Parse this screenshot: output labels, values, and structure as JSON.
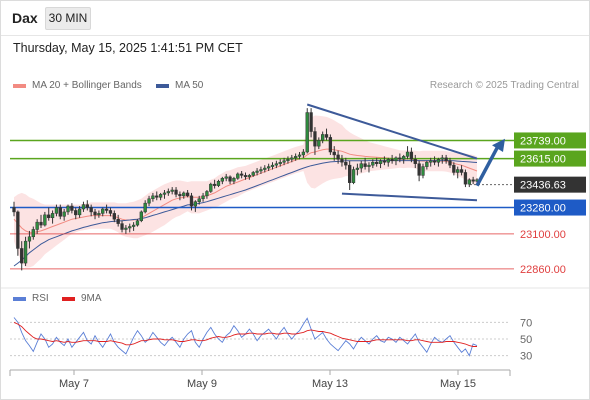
{
  "header": {
    "symbol": "Dax",
    "timeframe": "30 MIN",
    "datetime": "Thursday, May 15, 2025 1:41:51 PM CET"
  },
  "legend": {
    "bb_label": "MA 20 + Bollinger Bands",
    "bb_color": "#f28b82",
    "ma50_label": "MA 50",
    "ma50_color": "#3d5a99",
    "credit": "Research © 2025 Trading Central",
    "rsi_label": "RSI",
    "rsi_color": "#5b7fd6",
    "rsi_ma_label": "9MA",
    "rsi_ma_color": "#e02020"
  },
  "chart_data": {
    "type": "candlestick",
    "price_range": [
      22750,
      24050
    ],
    "current_price": 23436.63,
    "levels": [
      {
        "value": 23739.0,
        "label": "23739.00",
        "kind": "resistance",
        "color": "#5aa51e"
      },
      {
        "value": 23615.0,
        "label": "23615.00",
        "kind": "resistance",
        "color": "#5aa51e"
      },
      {
        "value": 23436.63,
        "label": "23436.63",
        "kind": "last",
        "color": "#333333"
      },
      {
        "value": 23280.0,
        "label": "23280.00",
        "kind": "pivot",
        "color": "#1e5bc6"
      },
      {
        "value": 23100.0,
        "label": "23100.00",
        "kind": "support",
        "color": "#e04040"
      },
      {
        "value": 22860.0,
        "label": "22860.00",
        "kind": "support",
        "color": "#e04040"
      }
    ],
    "x_ticks": [
      {
        "label": "May 7",
        "index": 19
      },
      {
        "label": "May 9",
        "index": 62
      },
      {
        "label": "May 13",
        "index": 105
      },
      {
        "label": "May 15",
        "index": 148
      }
    ],
    "candles": [
      [
        23280,
        23320,
        23220,
        23250
      ],
      [
        23250,
        23260,
        22950,
        23000
      ],
      [
        23000,
        23050,
        22850,
        22900
      ],
      [
        22900,
        23080,
        22880,
        23050
      ],
      [
        23050,
        23120,
        23000,
        23080
      ],
      [
        23080,
        23150,
        23060,
        23130
      ],
      [
        23130,
        23200,
        23100,
        23180
      ],
      [
        23180,
        23230,
        23140,
        23160
      ],
      [
        23160,
        23250,
        23150,
        23230
      ],
      [
        23230,
        23280,
        23190,
        23210
      ],
      [
        23210,
        23260,
        23170,
        23240
      ],
      [
        23240,
        23300,
        23220,
        23280
      ],
      [
        23280,
        23300,
        23200,
        23220
      ],
      [
        23220,
        23270,
        23190,
        23250
      ],
      [
        23250,
        23300,
        23230,
        23290
      ],
      [
        23290,
        23310,
        23240,
        23260
      ],
      [
        23260,
        23280,
        23200,
        23230
      ],
      [
        23230,
        23290,
        23210,
        23270
      ],
      [
        23270,
        23320,
        23250,
        23300
      ],
      [
        23300,
        23330,
        23260,
        23280
      ],
      [
        23280,
        23300,
        23220,
        23250
      ],
      [
        23250,
        23270,
        23200,
        23230
      ],
      [
        23230,
        23260,
        23210,
        23240
      ],
      [
        23240,
        23280,
        23220,
        23270
      ],
      [
        23270,
        23300,
        23240,
        23260
      ],
      [
        23260,
        23280,
        23220,
        23240
      ],
      [
        23240,
        23260,
        23180,
        23200
      ],
      [
        23200,
        23230,
        23150,
        23170
      ],
      [
        23170,
        23190,
        23110,
        23130
      ],
      [
        23130,
        23160,
        23100,
        23140
      ],
      [
        23140,
        23170,
        23110,
        23150
      ],
      [
        23150,
        23180,
        23120,
        23160
      ],
      [
        23160,
        23200,
        23150,
        23190
      ],
      [
        23190,
        23260,
        23180,
        23250
      ],
      [
        23250,
        23330,
        23240,
        23310
      ],
      [
        23310,
        23360,
        23290,
        23340
      ],
      [
        23340,
        23380,
        23320,
        23360
      ],
      [
        23360,
        23390,
        23330,
        23350
      ],
      [
        23350,
        23380,
        23330,
        23370
      ],
      [
        23370,
        23400,
        23340,
        23380
      ],
      [
        23380,
        23410,
        23360,
        23390
      ],
      [
        23390,
        23420,
        23370,
        23400
      ],
      [
        23400,
        23420,
        23350,
        23370
      ],
      [
        23370,
        23390,
        23330,
        23360
      ],
      [
        23360,
        23390,
        23340,
        23380
      ],
      [
        23380,
        23400,
        23350,
        23360
      ],
      [
        23360,
        23380,
        23260,
        23290
      ],
      [
        23290,
        23330,
        23250,
        23320
      ],
      [
        23320,
        23360,
        23300,
        23340
      ],
      [
        23340,
        23380,
        23320,
        23360
      ],
      [
        23360,
        23400,
        23340,
        23390
      ],
      [
        23390,
        23450,
        23380,
        23440
      ],
      [
        23440,
        23470,
        23410,
        23430
      ],
      [
        23430,
        23470,
        23420,
        23460
      ],
      [
        23460,
        23490,
        23440,
        23480
      ],
      [
        23480,
        23510,
        23460,
        23490
      ],
      [
        23490,
        23500,
        23440,
        23460
      ],
      [
        23460,
        23490,
        23440,
        23480
      ],
      [
        23480,
        23520,
        23470,
        23510
      ],
      [
        23510,
        23530,
        23480,
        23500
      ],
      [
        23500,
        23520,
        23470,
        23490
      ],
      [
        23490,
        23510,
        23470,
        23500
      ],
      [
        23500,
        23530,
        23490,
        23520
      ],
      [
        23520,
        23550,
        23500,
        23530
      ],
      [
        23530,
        23560,
        23510,
        23540
      ],
      [
        23540,
        23570,
        23520,
        23550
      ],
      [
        23550,
        23580,
        23530,
        23560
      ],
      [
        23560,
        23590,
        23540,
        23570
      ],
      [
        23570,
        23600,
        23550,
        23580
      ],
      [
        23580,
        23610,
        23560,
        23590
      ],
      [
        23590,
        23620,
        23570,
        23600
      ],
      [
        23600,
        23630,
        23580,
        23610
      ],
      [
        23610,
        23640,
        23590,
        23620
      ],
      [
        23620,
        23650,
        23600,
        23630
      ],
      [
        23630,
        23660,
        23610,
        23640
      ],
      [
        23640,
        23680,
        23620,
        23660
      ],
      [
        23660,
        23960,
        23650,
        23930
      ],
      [
        23930,
        23960,
        23760,
        23800
      ],
      [
        23800,
        23830,
        23640,
        23700
      ],
      [
        23700,
        23760,
        23680,
        23740
      ],
      [
        23740,
        23800,
        23720,
        23780
      ],
      [
        23780,
        23820,
        23740,
        23760
      ],
      [
        23760,
        23780,
        23640,
        23660
      ],
      [
        23660,
        23700,
        23600,
        23640
      ],
      [
        23640,
        23670,
        23580,
        23610
      ],
      [
        23610,
        23640,
        23560,
        23590
      ],
      [
        23590,
        23620,
        23540,
        23570
      ],
      [
        23570,
        23600,
        23400,
        23450
      ],
      [
        23450,
        23560,
        23440,
        23540
      ],
      [
        23540,
        23580,
        23500,
        23550
      ],
      [
        23550,
        23600,
        23520,
        23580
      ],
      [
        23580,
        23620,
        23540,
        23560
      ],
      [
        23560,
        23590,
        23520,
        23570
      ],
      [
        23570,
        23610,
        23550,
        23590
      ],
      [
        23590,
        23620,
        23560,
        23580
      ],
      [
        23580,
        23610,
        23550,
        23600
      ],
      [
        23600,
        23630,
        23570,
        23590
      ],
      [
        23590,
        23620,
        23560,
        23610
      ],
      [
        23610,
        23640,
        23580,
        23600
      ],
      [
        23600,
        23630,
        23570,
        23620
      ],
      [
        23620,
        23650,
        23590,
        23610
      ],
      [
        23610,
        23640,
        23580,
        23630
      ],
      [
        23630,
        23700,
        23610,
        23660
      ],
      [
        23660,
        23690,
        23590,
        23610
      ],
      [
        23610,
        23640,
        23550,
        23580
      ],
      [
        23580,
        23600,
        23460,
        23500
      ],
      [
        23500,
        23580,
        23480,
        23560
      ],
      [
        23560,
        23600,
        23540,
        23590
      ],
      [
        23590,
        23620,
        23560,
        23600
      ],
      [
        23600,
        23630,
        23570,
        23590
      ],
      [
        23590,
        23620,
        23560,
        23610
      ],
      [
        23610,
        23640,
        23580,
        23620
      ],
      [
        23620,
        23640,
        23580,
        23600
      ],
      [
        23600,
        23620,
        23550,
        23570
      ],
      [
        23570,
        23590,
        23500,
        23520
      ],
      [
        23520,
        23560,
        23480,
        23540
      ],
      [
        23540,
        23570,
        23500,
        23520
      ],
      [
        23520,
        23540,
        23420,
        23440
      ],
      [
        23440,
        23480,
        23420,
        23470
      ],
      [
        23470,
        23490,
        23440,
        23460
      ],
      [
        23460,
        23480,
        23440,
        23470
      ]
    ],
    "bb_mid": [
      23200,
      23170,
      23140,
      23120,
      23110,
      23110,
      23115,
      23120,
      23130,
      23140,
      23150,
      23160,
      23170,
      23180,
      23190,
      23200,
      23205,
      23210,
      23215,
      23220,
      23225,
      23225,
      23225,
      23225,
      23225,
      23225,
      23220,
      23210,
      23200,
      23195,
      23195,
      23195,
      23200,
      23210,
      23225,
      23240,
      23255,
      23270,
      23285,
      23300,
      23315,
      23330,
      23340,
      23345,
      23350,
      23355,
      23350,
      23350,
      23350,
      23355,
      23360,
      23370,
      23380,
      23395,
      23410,
      23425,
      23435,
      23445,
      23455,
      23465,
      23475,
      23485,
      23495,
      23505,
      23515,
      23525,
      23535,
      23545,
      23555,
      23565,
      23575,
      23585,
      23595,
      23605,
      23612,
      23620,
      23640,
      23655,
      23660,
      23668,
      23675,
      23680,
      23680,
      23676,
      23670,
      23665,
      23655,
      23645,
      23640,
      23636,
      23633,
      23630,
      23628,
      23626,
      23624,
      23622,
      23620,
      23618,
      23616,
      23614,
      23612,
      23610,
      23612,
      23612,
      23608,
      23600,
      23598,
      23598,
      23598,
      23598,
      23598,
      23598,
      23596,
      23590,
      23582,
      23576,
      23570,
      23560,
      23550,
      23540,
      23530
    ],
    "bb_width": [
      150,
      200,
      240,
      250,
      240,
      230,
      210,
      190,
      170,
      160,
      150,
      140,
      130,
      120,
      110,
      100,
      95,
      90,
      90,
      90,
      90,
      90,
      90,
      90,
      90,
      90,
      95,
      100,
      110,
      115,
      120,
      125,
      130,
      130,
      135,
      140,
      140,
      140,
      140,
      140,
      135,
      130,
      125,
      120,
      110,
      100,
      110,
      110,
      110,
      105,
      100,
      100,
      100,
      105,
      105,
      105,
      100,
      100,
      100,
      95,
      90,
      90,
      90,
      90,
      90,
      90,
      90,
      90,
      90,
      90,
      90,
      90,
      90,
      90,
      90,
      90,
      190,
      240,
      250,
      240,
      230,
      220,
      210,
      200,
      190,
      180,
      160,
      150,
      140,
      130,
      120,
      110,
      100,
      95,
      90,
      85,
      80,
      75,
      70,
      65,
      60,
      60,
      60,
      60,
      60,
      65,
      70,
      70,
      70,
      70,
      70,
      70,
      70,
      70,
      75,
      80,
      85,
      90,
      95,
      100,
      100
    ],
    "ma50": [
      22880,
      22900,
      22920,
      22945,
      22970,
      22990,
      23010,
      23030,
      23045,
      23060,
      23070,
      23080,
      23090,
      23100,
      23110,
      23120,
      23128,
      23136,
      23144,
      23150,
      23158,
      23164,
      23170,
      23176,
      23180,
      23184,
      23186,
      23188,
      23190,
      23192,
      23195,
      23198,
      23200,
      23205,
      23210,
      23218,
      23226,
      23234,
      23242,
      23250,
      23258,
      23266,
      23274,
      23282,
      23290,
      23298,
      23300,
      23304,
      23308,
      23314,
      23320,
      23328,
      23336,
      23344,
      23352,
      23360,
      23368,
      23376,
      23384,
      23392,
      23400,
      23410,
      23420,
      23430,
      23440,
      23450,
      23460,
      23470,
      23480,
      23490,
      23500,
      23510,
      23520,
      23530,
      23540,
      23550,
      23558,
      23566,
      23572,
      23578,
      23584,
      23588,
      23592,
      23594,
      23596,
      23598,
      23600,
      23600,
      23600,
      23600,
      23600,
      23600,
      23601,
      23601,
      23601,
      23601,
      23601,
      23601,
      23601,
      23601,
      23601,
      23601,
      23601,
      23601,
      23601,
      23601,
      23601,
      23601,
      23601,
      23601,
      23601,
      23601,
      23601,
      23601,
      23600,
      23598,
      23596,
      23594,
      23592,
      23590,
      23588
    ],
    "rsi_range": [
      15,
      85
    ],
    "rsi_ticks": [
      70,
      50,
      30
    ],
    "rsi": [
      76,
      70,
      58,
      48,
      42,
      35,
      46,
      56,
      50,
      40,
      44,
      52,
      46,
      42,
      50,
      40,
      46,
      52,
      58,
      48,
      44,
      54,
      46,
      40,
      48,
      56,
      46,
      40,
      36,
      32,
      42,
      52,
      60,
      54,
      46,
      50,
      58,
      52,
      46,
      42,
      48,
      52,
      46,
      40,
      50,
      56,
      60,
      46,
      40,
      50,
      58,
      64,
      56,
      50,
      46,
      54,
      58,
      66,
      60,
      52,
      56,
      62,
      56,
      48,
      54,
      58,
      62,
      56,
      50,
      58,
      64,
      56,
      50,
      56,
      60,
      68,
      75,
      62,
      50,
      54,
      58,
      50,
      44,
      40,
      36,
      42,
      48,
      44,
      38,
      46,
      52,
      48,
      44,
      50,
      54,
      48,
      46,
      52,
      50,
      46,
      52,
      48,
      44,
      50,
      56,
      46,
      40,
      34,
      44,
      52,
      48,
      46,
      50,
      54,
      46,
      40,
      34,
      38,
      30,
      44,
      42
    ],
    "rsi_ma": [
      70,
      68,
      65,
      60,
      56,
      52,
      50,
      50,
      49,
      48,
      47,
      48,
      47,
      46,
      47,
      46,
      46,
      47,
      48,
      48,
      48,
      48,
      47,
      47,
      47,
      48,
      47,
      46,
      45,
      43,
      43,
      44,
      46,
      48,
      48,
      49,
      50,
      50,
      50,
      49,
      49,
      49,
      48,
      47,
      47,
      48,
      49,
      49,
      48,
      48,
      49,
      51,
      52,
      53,
      52,
      52,
      53,
      55,
      56,
      56,
      56,
      57,
      57,
      56,
      56,
      56,
      57,
      57,
      56,
      56,
      57,
      57,
      56,
      56,
      57,
      58,
      60,
      61,
      60,
      59,
      59,
      58,
      57,
      55,
      53,
      51,
      50,
      49,
      48,
      47,
      47,
      47,
      47,
      48,
      49,
      49,
      49,
      49,
      49,
      49,
      49,
      49,
      48,
      48,
      49,
      49,
      48,
      47,
      46,
      46,
      46,
      46,
      47,
      47,
      47,
      46,
      45,
      44,
      42,
      41,
      41
    ]
  }
}
